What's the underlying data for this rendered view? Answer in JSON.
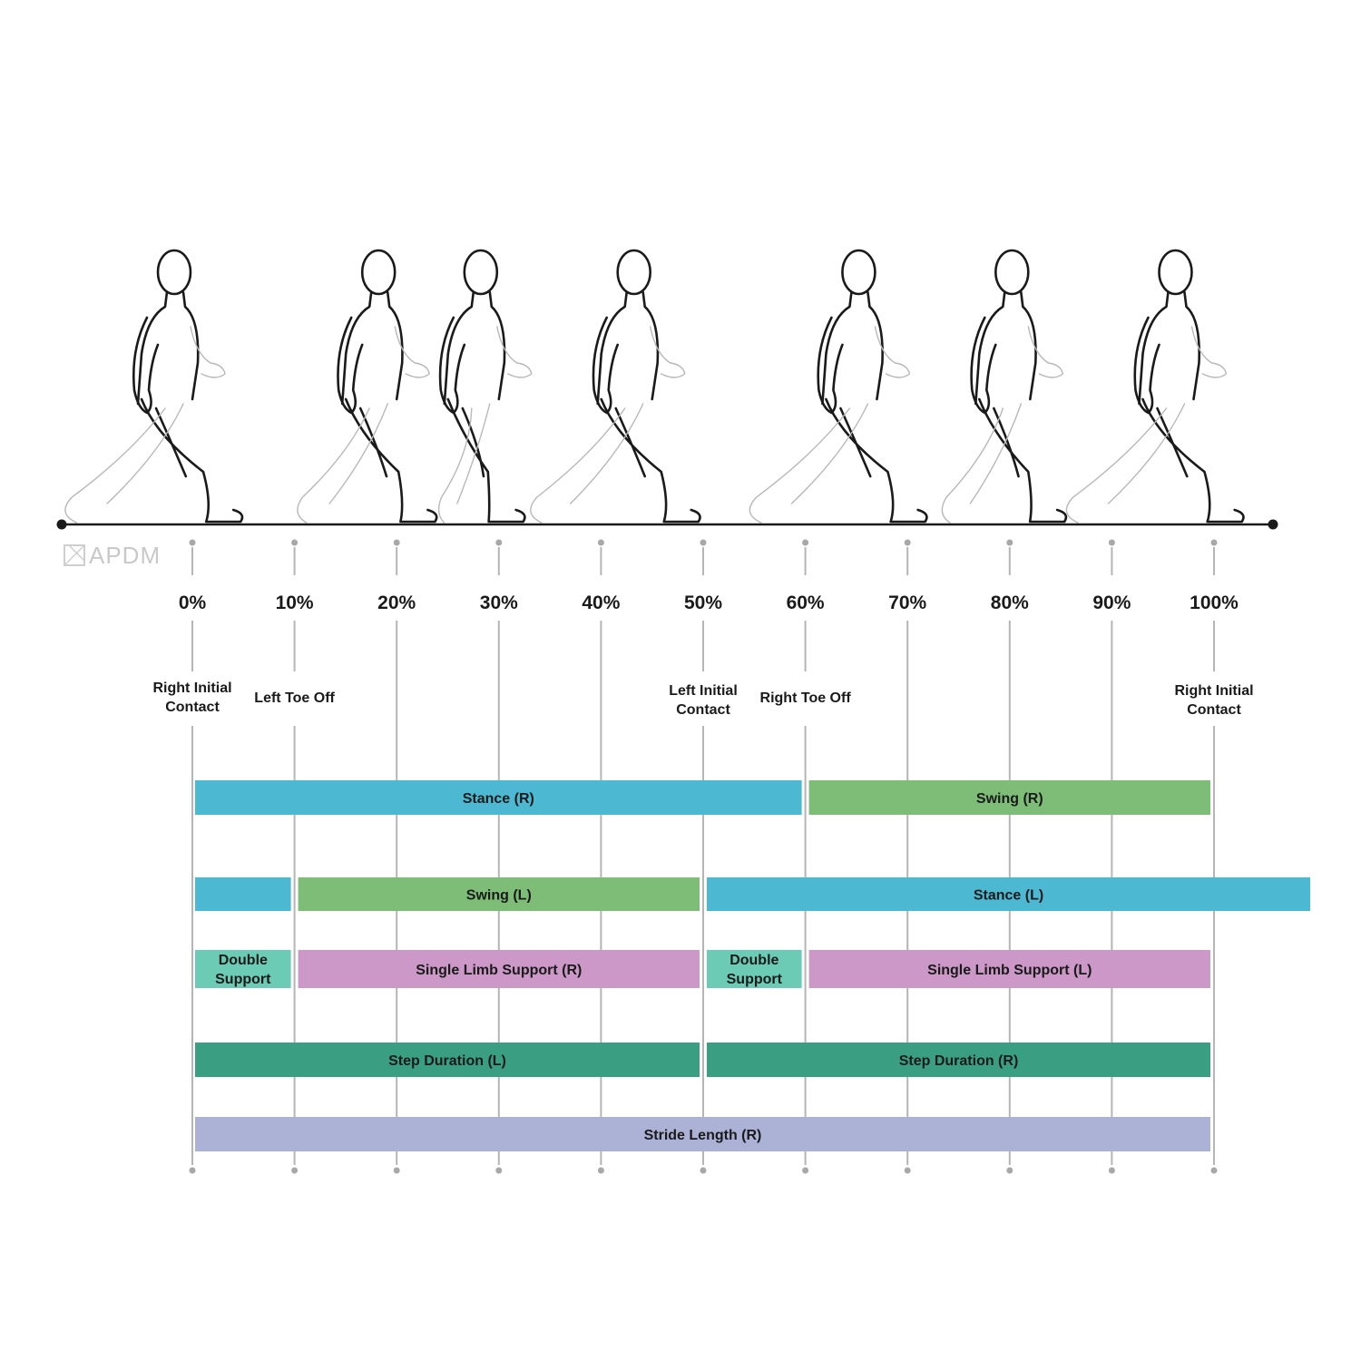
{
  "logo": {
    "text": "APDM"
  },
  "ticks": [
    "0%",
    "10%",
    "20%",
    "30%",
    "40%",
    "50%",
    "60%",
    "70%",
    "80%",
    "90%",
    "100%"
  ],
  "events": [
    {
      "pct": 0,
      "lines": [
        "Right Initial",
        "Contact"
      ]
    },
    {
      "pct": 10,
      "lines": [
        "Left Toe Off"
      ]
    },
    {
      "pct": 50,
      "lines": [
        "Left Initial",
        "Contact"
      ]
    },
    {
      "pct": 60,
      "lines": [
        "Right Toe Off"
      ]
    },
    {
      "pct": 100,
      "lines": [
        "Right Initial",
        "Contact"
      ]
    }
  ],
  "bars": [
    {
      "row": 0,
      "start": 0,
      "end": 60,
      "label": [
        "Stance (R)"
      ],
      "color": "#4cb8d1"
    },
    {
      "row": 0,
      "start": 60,
      "end": 100,
      "label": [
        "Swing (R)"
      ],
      "color": "#7dbd77"
    },
    {
      "row": 1,
      "start": 0,
      "end": 10,
      "label": [],
      "color": "#4cb8d1"
    },
    {
      "row": 1,
      "start": 10,
      "end": 50,
      "label": [
        "Swing (L)"
      ],
      "color": "#7dbd77"
    },
    {
      "row": 1,
      "start": 50,
      "end": 110,
      "label": [
        "Stance (L)"
      ],
      "color": "#4cb8d1"
    },
    {
      "row": 2,
      "start": 0,
      "end": 10,
      "label": [
        "Double",
        "Support"
      ],
      "color": "#6ccbb4"
    },
    {
      "row": 2,
      "start": 10,
      "end": 50,
      "label": [
        "Single Limb Support (R)"
      ],
      "color": "#cb98c8"
    },
    {
      "row": 2,
      "start": 50,
      "end": 60,
      "label": [
        "Double",
        "Support"
      ],
      "color": "#6ccbb4"
    },
    {
      "row": 2,
      "start": 60,
      "end": 100,
      "label": [
        "Single Limb Support (L)"
      ],
      "color": "#cb98c8"
    },
    {
      "row": 3,
      "start": 0,
      "end": 50,
      "label": [
        "Step Duration (L)"
      ],
      "color": "#3a9e82"
    },
    {
      "row": 3,
      "start": 50,
      "end": 100,
      "label": [
        "Step Duration (R)"
      ],
      "color": "#3a9e82"
    },
    {
      "row": 4,
      "start": 0,
      "end": 100,
      "label": [
        "Stride Length (R)"
      ],
      "color": "#abb2d6"
    }
  ],
  "figures_pct": [
    0,
    20,
    30,
    45,
    67,
    82,
    98
  ]
}
